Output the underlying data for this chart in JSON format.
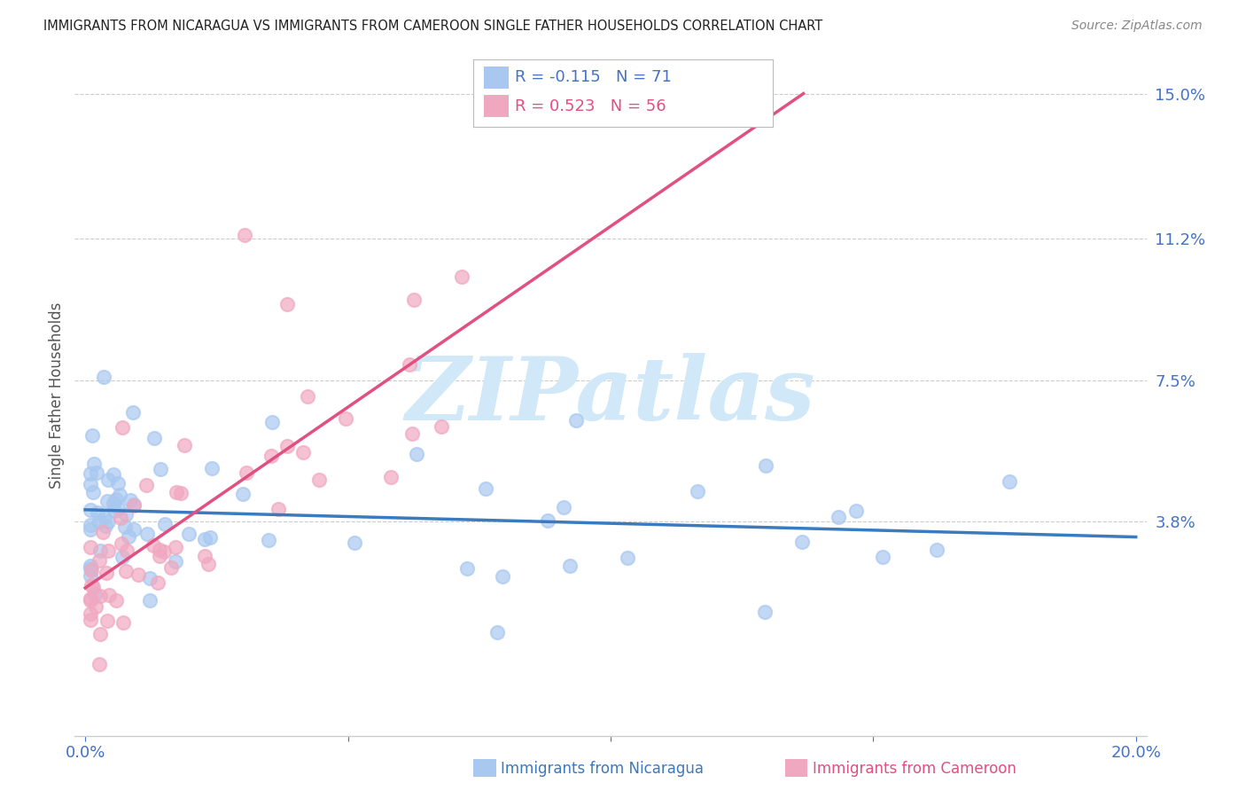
{
  "title": "IMMIGRANTS FROM NICARAGUA VS IMMIGRANTS FROM CAMEROON SINGLE FATHER HOUSEHOLDS CORRELATION CHART",
  "source": "Source: ZipAtlas.com",
  "xlabel_nicaragua": "Immigrants from Nicaragua",
  "xlabel_cameroon": "Immigrants from Cameroon",
  "ylabel": "Single Father Households",
  "xlim": [
    -0.002,
    0.202
  ],
  "ylim": [
    -0.018,
    0.16
  ],
  "ytick_values": [
    0.038,
    0.075,
    0.112,
    0.15
  ],
  "ytick_labels": [
    "3.8%",
    "7.5%",
    "11.2%",
    "15.0%"
  ],
  "xtick_values": [
    0.0,
    0.05,
    0.1,
    0.15,
    0.2
  ],
  "xtick_labels": [
    "0.0%",
    "",
    "",
    "",
    "20.0%"
  ],
  "nicaragua_color": "#a8c8f0",
  "cameroon_color": "#f0a8c0",
  "nicaragua_line_color": "#3a7abf",
  "cameroon_line_color": "#e05080",
  "text_color": "#4472c4",
  "legend_r_nicaragua": "R = -0.115",
  "legend_n_nicaragua": "N = 71",
  "legend_r_cameroon": "R = 0.523",
  "legend_n_cameroon": "N = 56",
  "watermark": "ZIPatlas",
  "watermark_color": "#d0e8f8",
  "grid_color": "#cccccc",
  "background_color": "#ffffff"
}
